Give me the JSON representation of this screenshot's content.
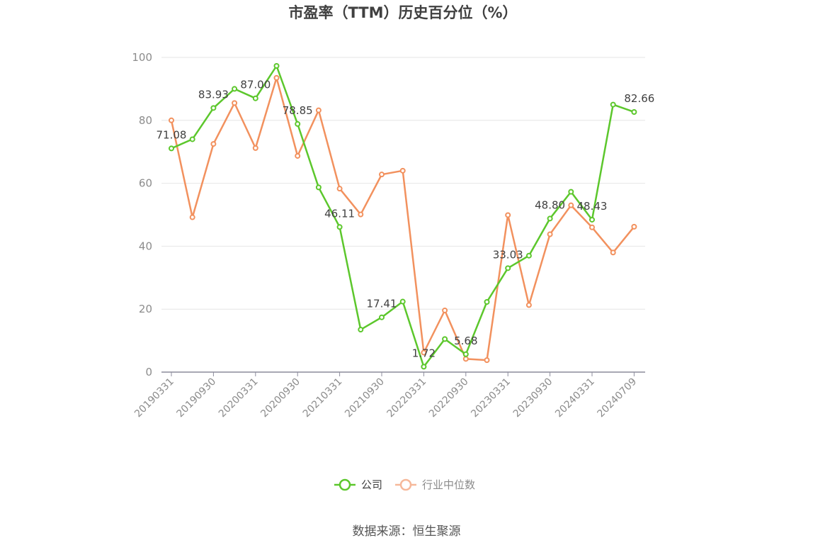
{
  "chart_data": {
    "type": "line",
    "title": "市盈率（TTM）历史百分位（%）",
    "ylim": [
      0,
      100
    ],
    "yticks": [
      0,
      20,
      40,
      60,
      80,
      100
    ],
    "x": [
      "20190331",
      "20190630",
      "20190930",
      "20191231",
      "20200331",
      "20200630",
      "20200930",
      "20201231",
      "20210331",
      "20210630",
      "20210930",
      "20211231",
      "20220331",
      "20220630",
      "20220930",
      "20221231",
      "20230331",
      "20230630",
      "20230930",
      "20231231",
      "20240331",
      "20240630",
      "20240709"
    ],
    "xtick_labels": [
      "20190331",
      "20190930",
      "20200331",
      "20200930",
      "20210331",
      "20210930",
      "20220331",
      "20220930",
      "20230331",
      "20230930",
      "20240331",
      "20240709"
    ],
    "series": [
      {
        "name": "公司",
        "color": "#5cc72c",
        "values": [
          71.08,
          74.0,
          83.93,
          90.0,
          87.0,
          97.3,
          78.85,
          58.7,
          46.11,
          13.5,
          17.41,
          22.4,
          1.72,
          10.5,
          5.68,
          22.3,
          33.03,
          37.0,
          48.8,
          57.3,
          48.43,
          85.0,
          82.66
        ]
      },
      {
        "name": "行业中位数",
        "color": "#f2915e",
        "values": [
          80.0,
          49.2,
          72.5,
          85.5,
          71.2,
          93.5,
          68.7,
          83.2,
          58.3,
          50.1,
          62.8,
          64.0,
          6.2,
          19.6,
          4.2,
          3.8,
          49.9,
          21.3,
          43.8,
          53.0,
          46.0,
          38.0,
          46.2
        ]
      }
    ],
    "data_labels": [
      {
        "index": 0,
        "text": "71.08"
      },
      {
        "index": 2,
        "text": "83.93"
      },
      {
        "index": 4,
        "text": "87.00"
      },
      {
        "index": 6,
        "text": "78.85"
      },
      {
        "index": 8,
        "text": "46.11"
      },
      {
        "index": 10,
        "text": "17.41"
      },
      {
        "index": 12,
        "text": "1.72"
      },
      {
        "index": 14,
        "text": "5.68"
      },
      {
        "index": 16,
        "text": "33.03"
      },
      {
        "index": 18,
        "text": "48.80"
      },
      {
        "index": 20,
        "text": "48.43"
      },
      {
        "index": 22,
        "text": "82.66"
      }
    ],
    "legend_placement": "bottom-center",
    "grid": true
  },
  "source_text": "数据来源：恒生聚源"
}
